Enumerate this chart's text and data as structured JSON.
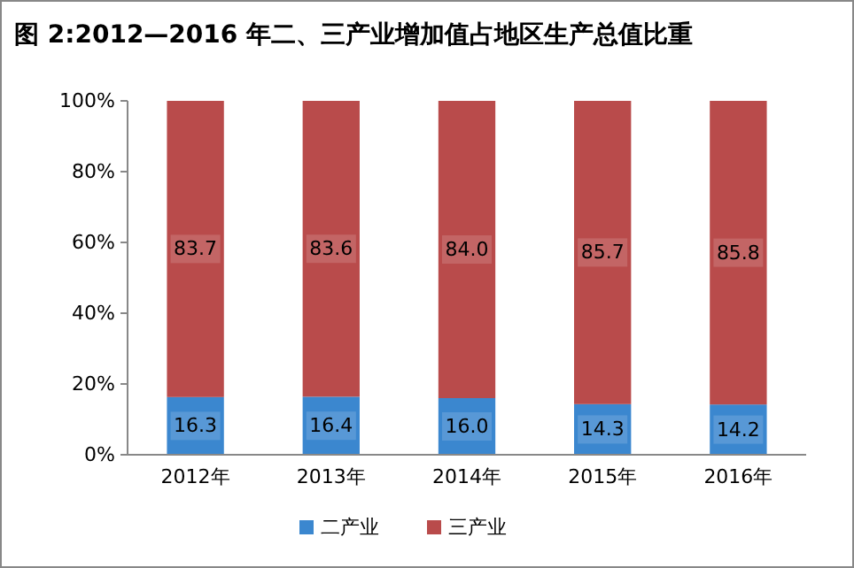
{
  "chart_data": {
    "type": "bar",
    "title": "图 2:2012—2016 年二、三产业增加值占地区生产总值比重",
    "categories": [
      "2012年",
      "2013年",
      "2014年",
      "2015年",
      "2016年"
    ],
    "stacked": true,
    "legend": "bottom",
    "grid": false,
    "series": [
      {
        "name": "二产业",
        "color": "#3b87cf",
        "values": [
          16.3,
          16.4,
          16.0,
          14.3,
          14.2
        ],
        "value_labels": [
          "16.3",
          "16.4",
          "16.0",
          "14.3",
          "14.2"
        ]
      },
      {
        "name": "三产业",
        "color": "#b94b4b",
        "values": [
          83.7,
          83.6,
          84.0,
          85.7,
          85.8
        ],
        "value_labels": [
          "83.7",
          "83.6",
          "84.0",
          "85.7",
          "85.8"
        ]
      }
    ],
    "ylim": [
      0,
      100
    ],
    "yticks": [
      {
        "value": 0,
        "label": "0%"
      },
      {
        "value": 20,
        "label": "20%"
      },
      {
        "value": 40,
        "label": "40%"
      },
      {
        "value": 60,
        "label": "60%"
      },
      {
        "value": 80,
        "label": "80%"
      },
      {
        "value": 100,
        "label": "100%"
      }
    ]
  }
}
